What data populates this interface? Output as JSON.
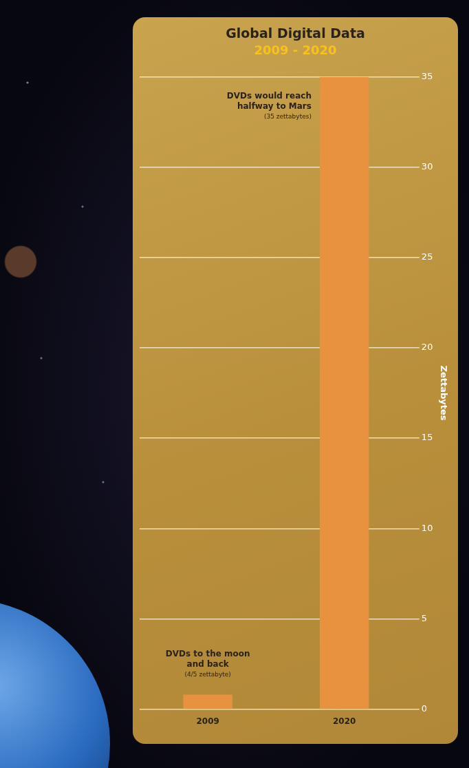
{
  "chart_data": {
    "type": "bar",
    "title": "Global Digital Data",
    "subtitle": "2009 - 2020",
    "y_label": "Zettabytes",
    "categories": [
      "2009",
      "2020"
    ],
    "values": [
      0.8,
      35
    ],
    "color": "#e8923f",
    "ylim": [
      0,
      35
    ],
    "yticks": [
      0,
      5,
      10,
      15,
      20,
      25,
      30,
      35
    ],
    "grid": true,
    "annotations": [
      {
        "category": "2009",
        "text": "DVDs to the moon and back",
        "note": "(4/5 zettabyte)"
      },
      {
        "category": "2020",
        "text": "DVDs would reach halfway to Mars",
        "note": "(35 zettabytes)"
      }
    ]
  }
}
